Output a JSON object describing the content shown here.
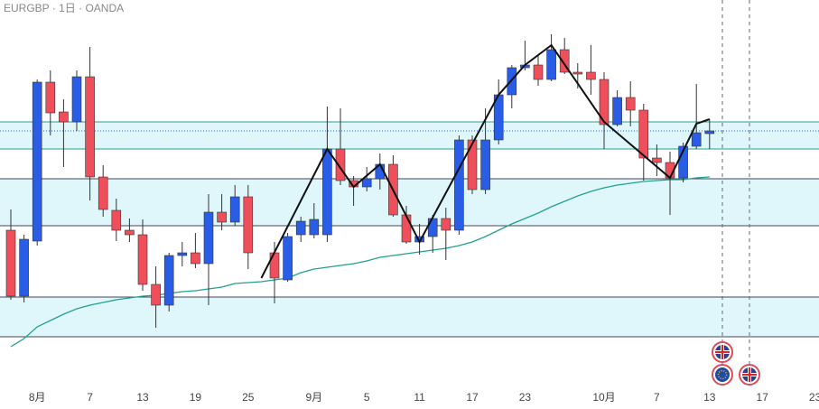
{
  "chart_data": {
    "type": "candlestick",
    "title": "EURGBP · 1日 · OANDA",
    "categories": [
      null,
      null,
      "8月",
      null,
      null,
      null,
      "7",
      null,
      null,
      null,
      "13",
      null,
      null,
      null,
      "19",
      null,
      null,
      null,
      "25",
      null,
      null,
      null,
      null,
      "9月",
      null,
      null,
      null,
      "5",
      null,
      null,
      null,
      "11",
      null,
      null,
      null,
      "17",
      null,
      null,
      null,
      "23",
      null,
      null,
      null,
      null,
      null,
      "10月",
      null,
      null,
      null,
      "7",
      null,
      null,
      null,
      "13",
      null,
      null,
      null,
      "17",
      null,
      null,
      null,
      "23"
    ],
    "open": [
      198,
      125,
      186,
      362,
      329,
      318,
      368,
      257,
      220,
      198,
      193,
      138,
      115,
      170,
      173,
      161,
      218,
      207,
      235,
      null,
      173,
      143,
      193,
      193,
      193,
      288,
      253,
      246,
      255,
      271,
      215,
      185,
      191,
      211,
      198,
      298,
      243,
      298,
      348,
      378,
      381,
      365,
      398,
      373,
      373,
      365,
      315,
      345,
      331,
      278,
      273,
      256,
      291,
      305,
      null,
      null,
      null,
      null,
      null,
      null,
      null,
      null
    ],
    "high": [
      221,
      193,
      365,
      375,
      343,
      375,
      401,
      270,
      233,
      211,
      210,
      158,
      173,
      185,
      195,
      238,
      238,
      248,
      248,
      null,
      185,
      195,
      213,
      228,
      335,
      333,
      258,
      268,
      283,
      281,
      225,
      205,
      215,
      223,
      303,
      303,
      333,
      365,
      381,
      408,
      393,
      415,
      411,
      383,
      403,
      373,
      353,
      363,
      338,
      293,
      285,
      295,
      360,
      321,
      null,
      null,
      null,
      null,
      null,
      null,
      null,
      null
    ],
    "low": [
      121,
      118,
      181,
      303,
      268,
      308,
      231,
      213,
      186,
      185,
      131,
      90,
      108,
      158,
      156,
      115,
      198,
      203,
      155,
      null,
      117,
      141,
      185,
      189,
      185,
      248,
      225,
      241,
      243,
      213,
      183,
      171,
      173,
      165,
      193,
      238,
      238,
      293,
      333,
      375,
      358,
      363,
      371,
      355,
      348,
      288,
      313,
      313,
      253,
      258,
      215,
      251,
      288,
      288,
      null,
      null,
      null,
      null,
      null,
      null,
      null,
      null
    ],
    "close": [
      125,
      188,
      362,
      328,
      318,
      368,
      257,
      221,
      198,
      193,
      138,
      115,
      170,
      173,
      161,
      218,
      207,
      235,
      173,
      null,
      145,
      191,
      208,
      210,
      288,
      253,
      246,
      255,
      271,
      215,
      185,
      191,
      211,
      198,
      298,
      243,
      298,
      348,
      378,
      381,
      365,
      398,
      373,
      371,
      365,
      315,
      345,
      331,
      278,
      273,
      256,
      291,
      306,
      308,
      null,
      null,
      null,
      null,
      null,
      null,
      null,
      null
    ],
    "up_color": "#2a5de6",
    "down_color": "#ef4f5a",
    "ma": {
      "color": "#22a18f",
      "values": [
        69,
        78,
        91,
        98,
        105,
        111,
        115,
        118,
        121,
        123,
        125,
        126,
        128,
        130,
        131,
        133,
        135,
        139,
        140,
        141,
        143,
        145,
        151,
        155,
        157,
        159,
        161,
        164,
        168,
        170,
        172,
        174,
        176,
        178,
        181,
        185,
        191,
        198,
        205,
        211,
        217,
        224,
        230,
        236,
        241,
        245,
        248,
        250,
        252,
        253,
        254,
        254,
        256,
        257,
        null,
        null,
        null,
        null,
        null,
        null,
        null,
        null
      ]
    },
    "zigzag": {
      "color": "#111111",
      "x": [
        19,
        24,
        26,
        28,
        31,
        37,
        39,
        41,
        45,
        50,
        52,
        53
      ],
      "values": [
        145,
        288,
        246,
        271,
        185,
        348,
        381,
        403,
        318,
        256,
        316,
        321
      ]
    },
    "zones": [
      {
        "low": 288,
        "high": 318
      },
      {
        "low": 203,
        "high": 255
      },
      {
        "low": 80,
        "high": 124
      }
    ],
    "ylim": [
      0,
      453
    ]
  }
}
